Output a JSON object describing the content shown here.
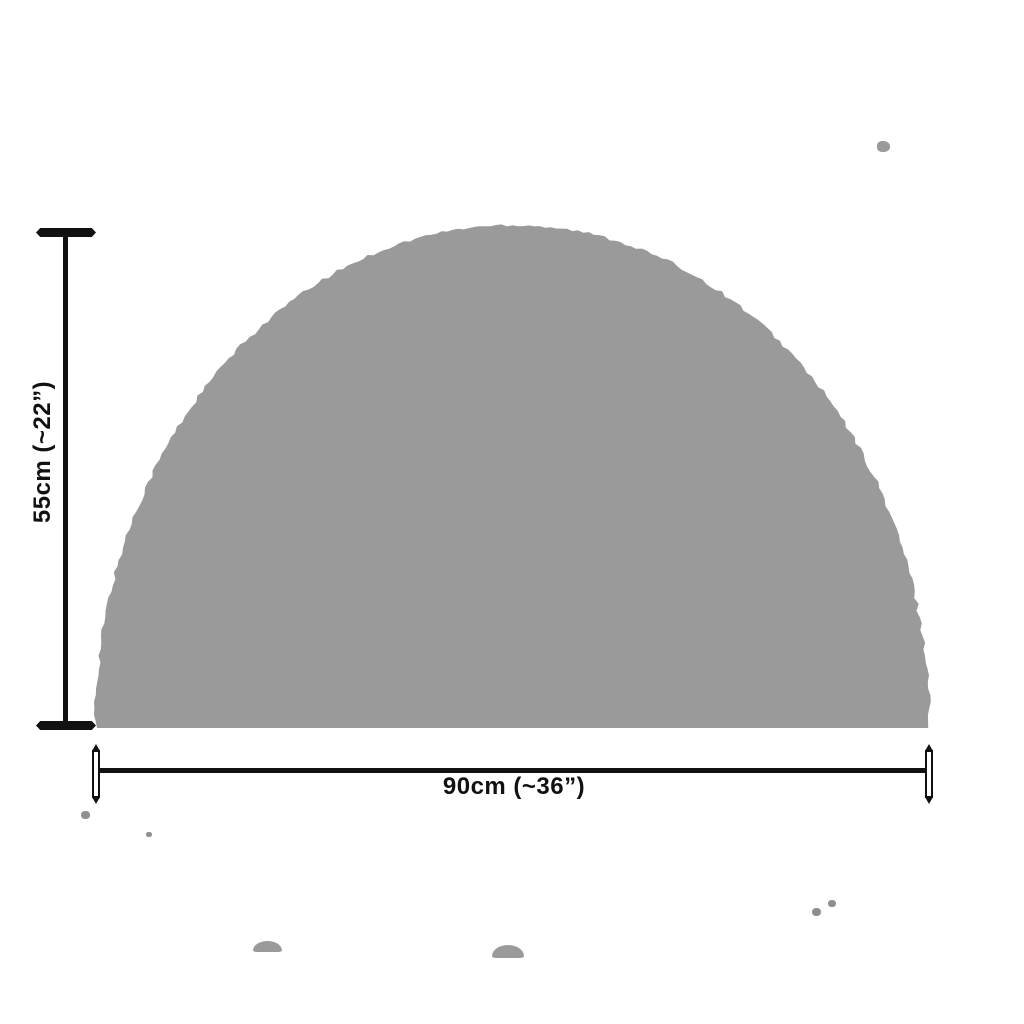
{
  "background_color": "#ffffff",
  "diagram": {
    "kind": "product-dimension-diagram",
    "shape": {
      "name": "half-round-dome",
      "geometry": "semi-ellipse",
      "fill_color": "#9a9a9a"
    },
    "line_color": "#111111",
    "height_dimension": {
      "label": "55cm (~22”)",
      "value_cm": 55,
      "value_in": 22
    },
    "width_dimension": {
      "label": "90cm (~36”)",
      "value_cm": 90,
      "value_in": 36
    }
  }
}
